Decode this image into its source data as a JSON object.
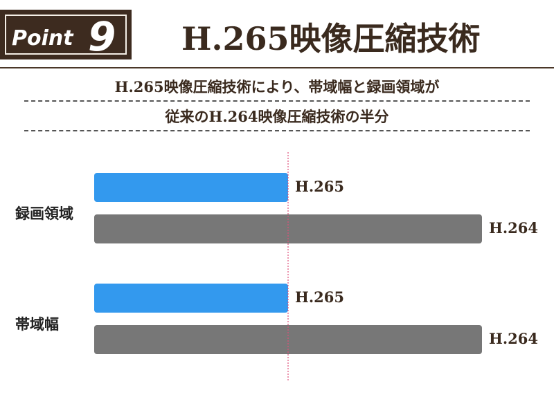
{
  "header": {
    "badge_word": "Point",
    "badge_number": "9",
    "title": "H.265映像圧縮技術"
  },
  "subtitle": {
    "line1": "H.265映像圧縮技術により、帯域幅と録画領域が",
    "line2": "従来のH.264映像圧縮技術の半分"
  },
  "colors": {
    "h265": "#3399ee",
    "h264": "#777777",
    "reference_line": "#e0507a",
    "text": "#3a2a1e"
  },
  "chart_data": {
    "type": "bar",
    "orientation": "horizontal",
    "categories": [
      "録画領域",
      "帯域幅"
    ],
    "series": [
      {
        "name": "H.265",
        "values": [
          50,
          50
        ],
        "color": "#3399ee"
      },
      {
        "name": "H.264",
        "values": [
          100,
          100
        ],
        "color": "#777777"
      }
    ],
    "reference_line": {
      "value": 50
    },
    "xlim": [
      0,
      100
    ],
    "grid": false,
    "legend": "none",
    "title": "",
    "xlabel": "",
    "ylabel": ""
  }
}
